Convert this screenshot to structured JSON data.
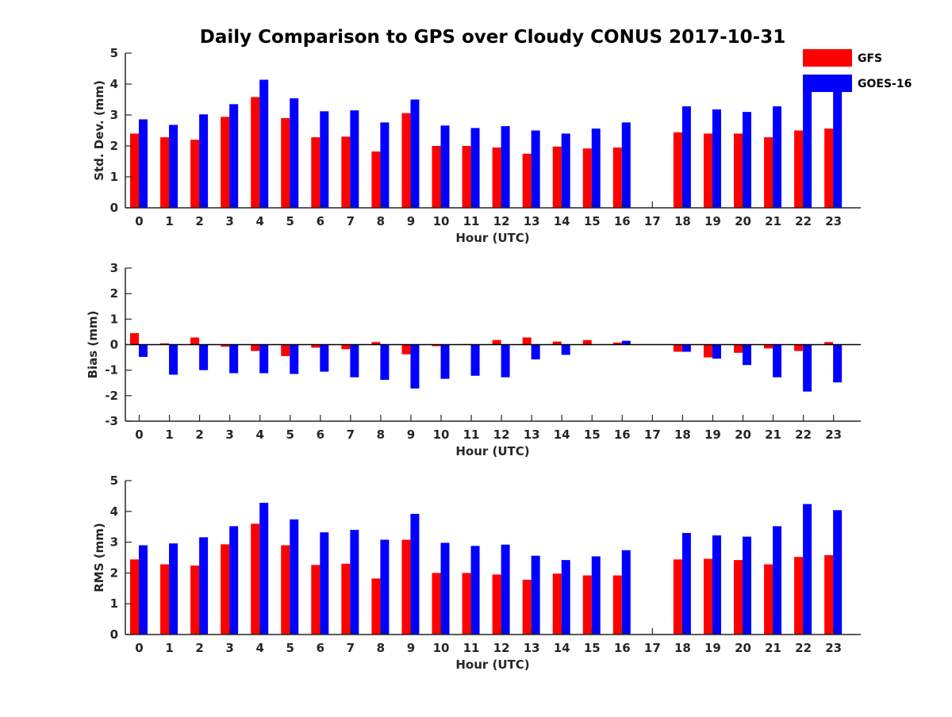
{
  "title": "Daily Comparison to GPS over Cloudy CONUS 2017-10-31",
  "colors": {
    "GFS": "#ff0000",
    "GOES-16": "#0000ff"
  },
  "legend": [
    "GFS",
    "GOES-16"
  ],
  "chart_data": [
    {
      "type": "bar",
      "ylabel": "Std. Dev. (mm)",
      "xlabel": "Hour (UTC)",
      "ylim": [
        0,
        5
      ],
      "yticks": [
        "0",
        "1",
        "2",
        "3",
        "4",
        "5"
      ],
      "categories": [
        "0",
        "1",
        "2",
        "3",
        "4",
        "5",
        "6",
        "7",
        "8",
        "9",
        "10",
        "11",
        "12",
        "13",
        "14",
        "15",
        "16",
        "17",
        "18",
        "19",
        "20",
        "21",
        "22",
        "23"
      ],
      "series": [
        {
          "name": "GFS",
          "values": [
            2.4,
            2.28,
            2.2,
            2.94,
            3.58,
            2.9,
            2.28,
            2.3,
            1.82,
            3.06,
            2.0,
            2.0,
            1.95,
            1.75,
            1.98,
            1.92,
            1.95,
            null,
            2.44,
            2.4,
            2.4,
            2.28,
            2.5,
            2.56
          ]
        },
        {
          "name": "GOES-16",
          "values": [
            2.86,
            2.68,
            3.02,
            3.35,
            4.14,
            3.54,
            3.12,
            3.15,
            2.76,
            3.5,
            2.66,
            2.58,
            2.64,
            2.5,
            2.4,
            2.56,
            2.76,
            null,
            3.28,
            3.18,
            3.1,
            3.28,
            3.8,
            3.88
          ]
        }
      ]
    },
    {
      "type": "bar",
      "ylabel": "Bias (mm)",
      "xlabel": "Hour (UTC)",
      "ylim": [
        -3,
        3
      ],
      "yticks": [
        "-3",
        "-2",
        "-1",
        "0",
        "1",
        "2",
        "3"
      ],
      "categories": [
        "0",
        "1",
        "2",
        "3",
        "4",
        "5",
        "6",
        "7",
        "8",
        "9",
        "10",
        "11",
        "12",
        "13",
        "14",
        "15",
        "16",
        "17",
        "18",
        "19",
        "20",
        "21",
        "22",
        "23"
      ],
      "series": [
        {
          "name": "GFS",
          "values": [
            0.45,
            0.05,
            0.28,
            -0.08,
            -0.25,
            -0.45,
            -0.12,
            -0.18,
            0.1,
            -0.38,
            -0.06,
            0.02,
            0.18,
            0.28,
            0.12,
            0.18,
            0.08,
            null,
            -0.28,
            -0.5,
            -0.32,
            -0.15,
            -0.25,
            0.1
          ]
        },
        {
          "name": "GOES-16",
          "values": [
            -0.48,
            -1.18,
            -1.0,
            -1.12,
            -1.12,
            -1.15,
            -1.06,
            -1.28,
            -1.38,
            -1.72,
            -1.34,
            -1.22,
            -1.28,
            -0.58,
            -0.4,
            0.0,
            0.15,
            null,
            -0.28,
            -0.55,
            -0.8,
            -1.28,
            -1.84,
            -1.48
          ]
        }
      ]
    },
    {
      "type": "bar",
      "ylabel": "RMS (mm)",
      "xlabel": "Hour (UTC)",
      "ylim": [
        0,
        5
      ],
      "yticks": [
        "0",
        "1",
        "2",
        "3",
        "4",
        "5"
      ],
      "categories": [
        "0",
        "1",
        "2",
        "3",
        "4",
        "5",
        "6",
        "7",
        "8",
        "9",
        "10",
        "11",
        "12",
        "13",
        "14",
        "15",
        "16",
        "17",
        "18",
        "19",
        "20",
        "21",
        "22",
        "23"
      ],
      "series": [
        {
          "name": "GFS",
          "values": [
            2.44,
            2.28,
            2.24,
            2.93,
            3.6,
            2.9,
            2.26,
            2.3,
            1.82,
            3.08,
            2.0,
            2.0,
            1.95,
            1.78,
            1.98,
            1.92,
            1.92,
            null,
            2.44,
            2.46,
            2.42,
            2.28,
            2.52,
            2.58
          ]
        },
        {
          "name": "GOES-16",
          "values": [
            2.9,
            2.96,
            3.16,
            3.52,
            4.28,
            3.74,
            3.32,
            3.4,
            3.08,
            3.92,
            2.98,
            2.88,
            2.92,
            2.56,
            2.42,
            2.54,
            2.74,
            null,
            3.3,
            3.22,
            3.18,
            3.52,
            4.24,
            4.04
          ]
        }
      ]
    }
  ]
}
